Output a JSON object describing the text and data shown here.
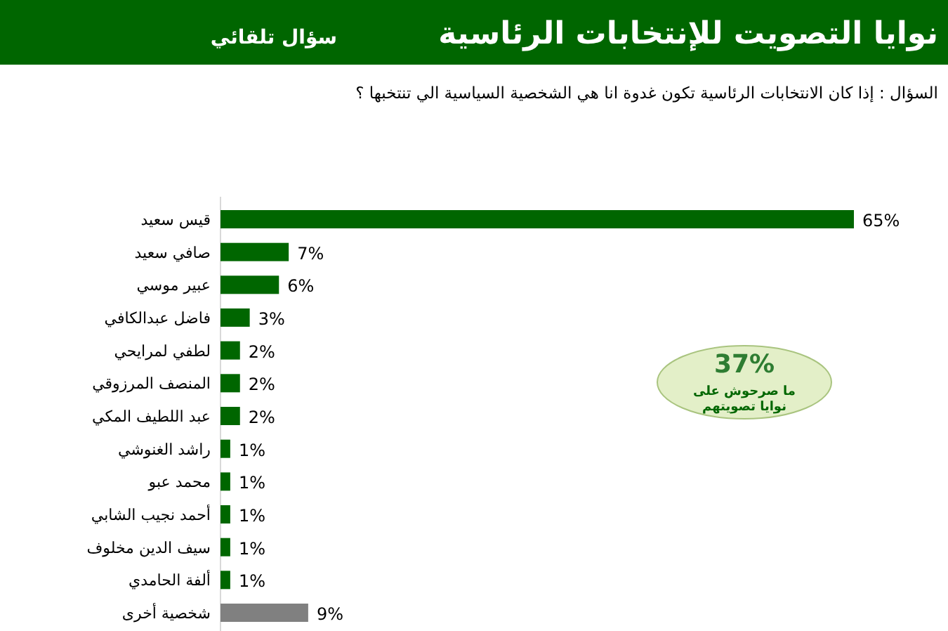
{
  "chart_data": {
    "type": "bar",
    "orientation": "horizontal",
    "title": "نوايا التصويت للإنتخابات الرئاسية",
    "subtitle": "سؤال تلقائي",
    "annotations": [
      "السؤال : إذا كان الانتخابات الرئاسية تكون غدوة انا هي الشخصية السياسية الي تنتخبها ؟",
      "37%",
      "ما صرحوش على نوايا تصويتهم"
    ],
    "categories": [
      "قيس سعيد",
      "صافي سعيد",
      "عبير موسي",
      "فاضل عبدالكافي",
      "لطفي لمرايحي",
      "المنصف المرزوقي",
      "عبد اللطيف المكي",
      "راشد الغنوشي",
      "محمد عبو",
      "أحمد نجيب الشابي",
      "سيف الدين مخلوف",
      "ألفة الحامدي",
      "شخصية أخرى"
    ],
    "values": [
      65,
      7,
      6,
      3,
      2,
      2,
      2,
      1,
      1,
      1,
      1,
      1,
      9
    ],
    "value_labels": [
      "65%",
      "7%",
      "6%",
      "3%",
      "2%",
      "2%",
      "2%",
      "1%",
      "1%",
      "1%",
      "1%",
      "1%",
      "9%"
    ],
    "colors": [
      "#006600",
      "#006600",
      "#006600",
      "#006600",
      "#006600",
      "#006600",
      "#006600",
      "#006600",
      "#006600",
      "#006600",
      "#006600",
      "#006600",
      "#808080"
    ]
  }
}
